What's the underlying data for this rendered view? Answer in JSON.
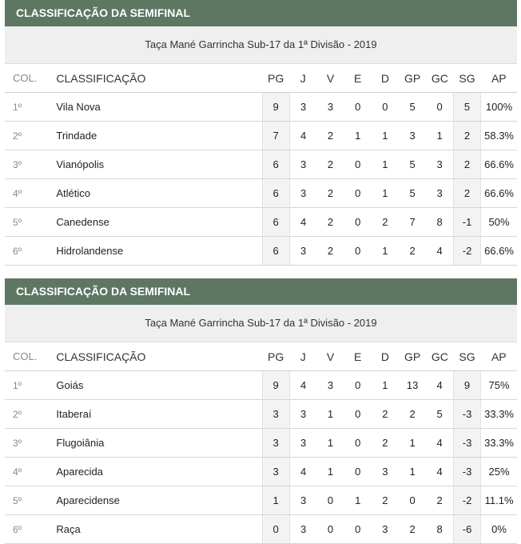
{
  "tables": [
    {
      "header": "CLASSIFICAÇÃO DA SEMIFINAL",
      "subtitle": "Taça Mané Garrincha Sub-17 da 1ª Divisão - 2019",
      "columns": [
        "COL.",
        "CLASSIFICAÇÃO",
        "PG",
        "J",
        "V",
        "E",
        "D",
        "GP",
        "GC",
        "SG",
        "AP"
      ],
      "rows": [
        [
          "1º",
          "Vila Nova",
          "9",
          "3",
          "3",
          "0",
          "0",
          "5",
          "0",
          "5",
          "100%"
        ],
        [
          "2º",
          "Trindade",
          "7",
          "4",
          "2",
          "1",
          "1",
          "3",
          "1",
          "2",
          "58.3%"
        ],
        [
          "3º",
          "Vianópolis",
          "6",
          "3",
          "2",
          "0",
          "1",
          "5",
          "3",
          "2",
          "66.6%"
        ],
        [
          "4º",
          "Atlético",
          "6",
          "3",
          "2",
          "0",
          "1",
          "5",
          "3",
          "2",
          "66.6%"
        ],
        [
          "5º",
          "Canedense",
          "6",
          "4",
          "2",
          "0",
          "2",
          "7",
          "8",
          "-1",
          "50%"
        ],
        [
          "6º",
          "Hidrolandense",
          "6",
          "3",
          "2",
          "0",
          "1",
          "2",
          "4",
          "-2",
          "66.6%"
        ]
      ]
    },
    {
      "header": "CLASSIFICAÇÃO DA SEMIFINAL",
      "subtitle": "Taça Mané Garrincha Sub-17 da 1ª Divisão - 2019",
      "columns": [
        "COL.",
        "CLASSIFICAÇÃO",
        "PG",
        "J",
        "V",
        "E",
        "D",
        "GP",
        "GC",
        "SG",
        "AP"
      ],
      "rows": [
        [
          "1º",
          "Goiás",
          "9",
          "4",
          "3",
          "0",
          "1",
          "13",
          "4",
          "9",
          "75%"
        ],
        [
          "2º",
          "Itaberaí",
          "3",
          "3",
          "1",
          "0",
          "2",
          "2",
          "5",
          "-3",
          "33.3%"
        ],
        [
          "3º",
          "Flugoiânia",
          "3",
          "3",
          "1",
          "0",
          "2",
          "1",
          "4",
          "-3",
          "33.3%"
        ],
        [
          "4º",
          "Aparecida",
          "3",
          "4",
          "1",
          "0",
          "3",
          "1",
          "4",
          "-3",
          "25%"
        ],
        [
          "5º",
          "Aparecidense",
          "1",
          "3",
          "0",
          "1",
          "2",
          "0",
          "2",
          "-2",
          "11.1%"
        ],
        [
          "6º",
          "Raça",
          "0",
          "3",
          "0",
          "0",
          "3",
          "2",
          "8",
          "-6",
          "0%"
        ]
      ]
    }
  ],
  "colors": {
    "header_bg": "#5d7763",
    "subtitle_bg": "#efefef",
    "shaded_col_bg": "#f3f3f3"
  }
}
